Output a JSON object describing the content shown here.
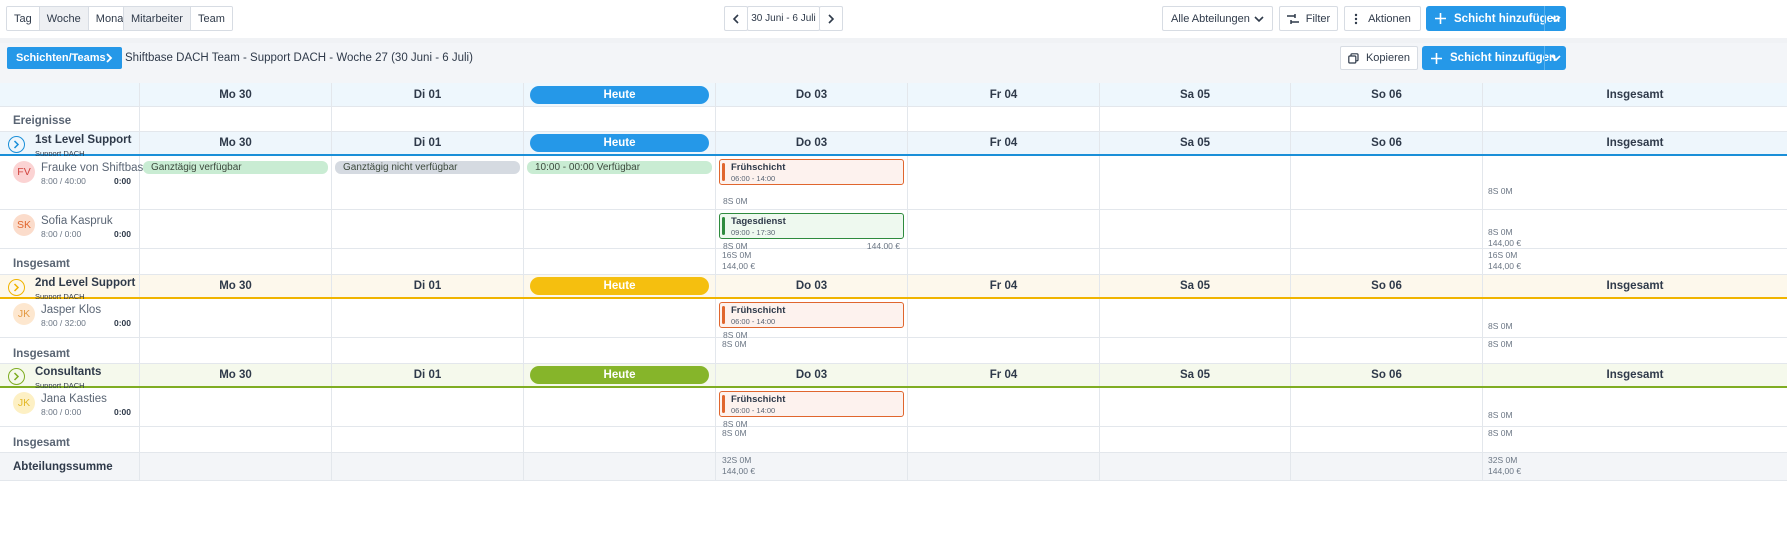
{
  "toolbar": {
    "view_tabs": [
      "Tag",
      "Woche",
      "Monat"
    ],
    "view_active": "Woche",
    "group_tabs": [
      "Mitarbeiter",
      "Team"
    ],
    "group_active": "Mitarbeiter",
    "date_range": "30 Juni - 6 Juli",
    "department_select": "Alle Abteilungen",
    "filter_label": "Filter",
    "actions_label": "Aktionen",
    "add_shift_label": "Schicht hinzufügen"
  },
  "subbar": {
    "breadcrumb_button": "Schichten/Teams",
    "title": "Shiftbase DACH Team - Support DACH - Woche 27 (30 Juni - 6 Juli)",
    "copy_label": "Kopieren",
    "add_shift_label": "Schicht hinzufügen"
  },
  "days": [
    "Mo 30",
    "Di 01",
    "Heute",
    "Do 03",
    "Fr 04",
    "Sa 05",
    "So 06",
    "Insgesamt"
  ],
  "events_label": "Ereignisse",
  "teams": [
    {
      "name": "1st Level Support",
      "sub": "Support DACH",
      "color": "#1a8fd8",
      "today_color": "#2598e8",
      "header_bg": "#eef6fc",
      "employees": [
        {
          "initials": "FV",
          "name": "Frauke von Shiftbase",
          "hours": "8:00 / 40:00",
          "total": "0:00",
          "avatar_bg": "#fbd3d3",
          "avatar_fg": "#d0443f",
          "availability": [
            "Ganztägig verfügbar",
            "Ganztägig nicht verfügbar",
            "10:00 - 00:00 Verfügbar"
          ],
          "shift": {
            "title": "Frühschicht",
            "hours": "06:00 - 14:00",
            "color": "#e0662e",
            "bg": "#fdf2ee"
          },
          "shift_meta": "8S 0M",
          "row_total": [
            "8S 0M"
          ]
        },
        {
          "initials": "SK",
          "name": "Sofia Kaspruk",
          "hours": "8:00 / 0:00",
          "total": "0:00",
          "avatar_bg": "#fbdccb",
          "avatar_fg": "#e0662e",
          "shift": {
            "title": "Tagesdienst",
            "hours": "09:00 - 17:30",
            "color": "#2e8b3e",
            "bg": "#eef9ef"
          },
          "shift_meta": "8S 0M",
          "shift_cost": "144,00 €",
          "row_total": [
            "8S 0M",
            "144,00 €"
          ]
        }
      ],
      "total_label": "Insgesamt",
      "total_day": [
        "16S 0M",
        "144,00 €"
      ],
      "total_sum": [
        "16S 0M",
        "144,00 €"
      ]
    },
    {
      "name": "2nd Level Support",
      "sub": "Support DACH",
      "color": "#f0b400",
      "today_color": "#f5bf0f",
      "header_bg": "#fdf8ec",
      "employees": [
        {
          "initials": "JK",
          "name": "Jasper Klos",
          "hours": "8:00 / 32:00",
          "total": "0:00",
          "avatar_bg": "#fde7cf",
          "avatar_fg": "#e39a44",
          "shift": {
            "title": "Frühschicht",
            "hours": "06:00 - 14:00",
            "color": "#e0662e",
            "bg": "#fdf2ee"
          },
          "shift_meta": "8S 0M",
          "row_total": [
            "8S 0M"
          ]
        }
      ],
      "total_label": "Insgesamt",
      "total_day": [
        "8S 0M"
      ],
      "total_sum": [
        "8S 0M"
      ]
    },
    {
      "name": "Consultants",
      "sub": "Support DACH",
      "color": "#7fad23",
      "today_color": "#86b52a",
      "header_bg": "#f5f9ec",
      "employees": [
        {
          "initials": "JK",
          "name": "Jana Kasties",
          "hours": "8:00 / 0:00",
          "total": "0:00",
          "avatar_bg": "#fdf0c4",
          "avatar_fg": "#e3b92a",
          "shift": {
            "title": "Frühschicht",
            "hours": "06:00 - 14:00",
            "color": "#e0662e",
            "bg": "#fdf2ee"
          },
          "shift_meta": "8S 0M",
          "row_total": [
            "8S 0M"
          ]
        }
      ],
      "total_label": "Insgesamt",
      "total_day": [
        "8S 0M"
      ],
      "total_sum": [
        "8S 0M"
      ]
    }
  ],
  "department_total": {
    "label": "Abteilungssumme",
    "day": [
      "32S 0M",
      "144,00 €"
    ],
    "sum": [
      "32S 0M",
      "144,00 €"
    ]
  }
}
